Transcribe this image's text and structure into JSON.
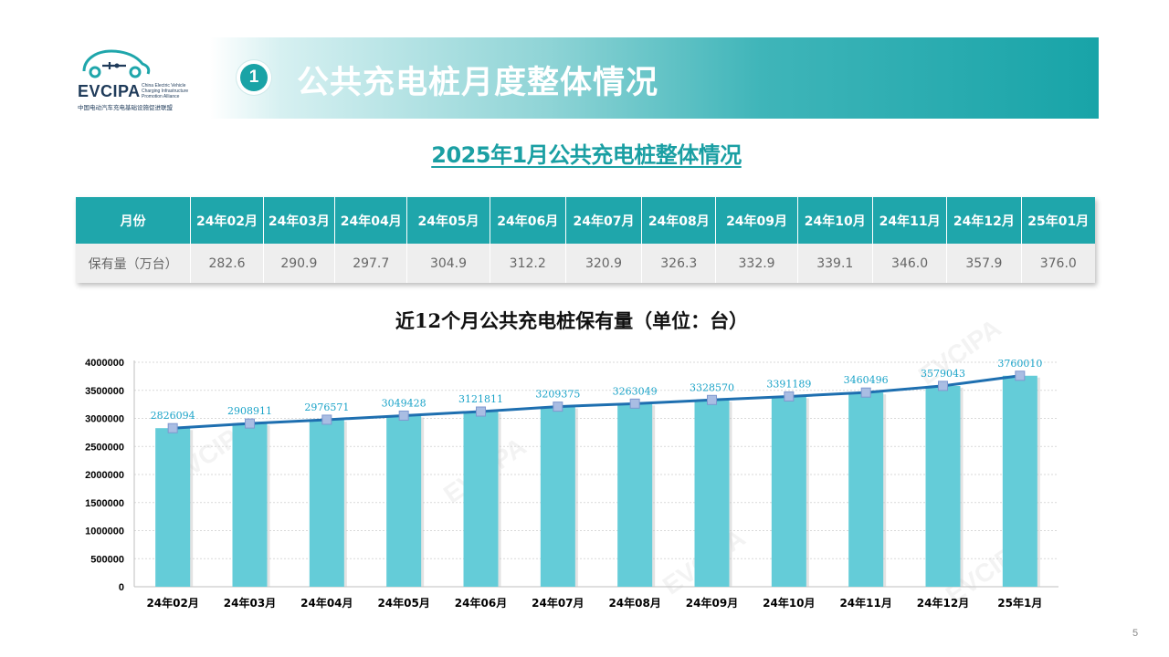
{
  "logo": {
    "name": "EVCIPA",
    "subtitle": "China Electric Vehicle Charging Infrastructure Promotion Alliance",
    "cn": "中国电动汽车充电基础设施促进联盟"
  },
  "header": {
    "number": "1",
    "title": "公共充电桩月度整体情况"
  },
  "subtitle": "2025年1月公共充电桩整体情况",
  "table": {
    "header_label": "月份",
    "row_label": "保有量（万台）",
    "months": [
      "24年02月",
      "24年03月",
      "24年04月",
      "24年05月",
      "24年06月",
      "24年07月",
      "24年08月",
      "24年09月",
      "24年10月",
      "24年11月",
      "24年12月",
      "25年01月"
    ],
    "values": [
      "282.6",
      "290.9",
      "297.7",
      "304.9",
      "312.2",
      "320.9",
      "326.3",
      "332.9",
      "339.1",
      "346.0",
      "357.9",
      "376.0"
    ]
  },
  "chart_title": "近12个月公共充电桩保有量（单位：台）",
  "chart_data": {
    "type": "bar",
    "categories": [
      "24年02月",
      "24年03月",
      "24年04月",
      "24年05月",
      "24年06月",
      "24年07月",
      "24年08月",
      "24年09月",
      "24年10月",
      "24年11月",
      "24年12月",
      "25年1月"
    ],
    "series": [
      {
        "type": "bar",
        "values": [
          2826094,
          2908911,
          2976571,
          3049428,
          3121811,
          3209375,
          3263049,
          3328570,
          3391189,
          3460496,
          3579043,
          3760010
        ]
      },
      {
        "type": "line",
        "values": [
          2826094,
          2908911,
          2976571,
          3049428,
          3121811,
          3209375,
          3263049,
          3328570,
          3391189,
          3460496,
          3579043,
          3760010
        ]
      }
    ],
    "data_labels": [
      "2826094",
      "2908911",
      "2976571",
      "3049428",
      "3121811",
      "3209375",
      "3263049",
      "3328570",
      "3391189",
      "3460496",
      "3579043",
      "3760010"
    ],
    "ylim": [
      0,
      4000000
    ],
    "yticks": [
      "0",
      "500000",
      "1000000",
      "1500000",
      "2000000",
      "2500000",
      "3000000",
      "3500000",
      "4000000"
    ],
    "grid": true,
    "colors": {
      "bar": "#64ccd8",
      "line": "#1e6fb0",
      "marker": "#a9bde3",
      "label": "#1aa3c8"
    }
  },
  "page_number": "5",
  "watermark": "EVCIPA"
}
